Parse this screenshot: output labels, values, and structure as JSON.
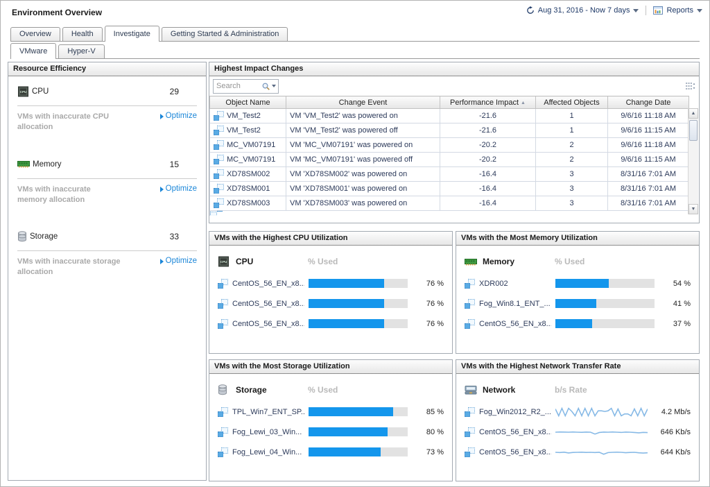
{
  "header": {
    "title": "Environment Overview",
    "time_range": "Aug 31, 2016 - Now 7 days",
    "reports_label": "Reports"
  },
  "tabs": {
    "main": [
      "Overview",
      "Health",
      "Investigate",
      "Getting Started & Administration"
    ],
    "selected_main": "Investigate",
    "sub": [
      "VMware",
      "Hyper-V"
    ],
    "selected_sub": "VMware"
  },
  "resource_efficiency": {
    "title": "Resource Efficiency",
    "metrics": [
      {
        "label": "CPU",
        "value": "29",
        "sub_label": "VMs with inaccurate CPU allocation",
        "action": "Optimize"
      },
      {
        "label": "Memory",
        "value": "15",
        "sub_label": "VMs with inaccurate memory allocation",
        "action": "Optimize"
      },
      {
        "label": "Storage",
        "value": "33",
        "sub_label": "VMs with inaccurate storage allocation",
        "action": "Optimize"
      }
    ]
  },
  "changes": {
    "title": "Highest Impact Changes",
    "search_placeholder": "Search",
    "columns": [
      "Object Name",
      "Change Event",
      "Performance Impact",
      "Affected Objects",
      "Change Date"
    ],
    "sorted_column": "Performance Impact",
    "sort_direction": "asc",
    "rows": [
      [
        "VM_Test2",
        "VM 'VM_Test2' was powered on",
        "-21.6",
        "1",
        "9/6/16 11:18 AM"
      ],
      [
        "VM_Test2",
        "VM 'VM_Test2' was powered off",
        "-21.6",
        "1",
        "9/6/16 11:15 AM"
      ],
      [
        "MC_VM07191",
        "VM 'MC_VM07191' was powered on",
        "-20.2",
        "2",
        "9/6/16 11:18 AM"
      ],
      [
        "MC_VM07191",
        "VM 'MC_VM07191' was powered off",
        "-20.2",
        "2",
        "9/6/16 11:15 AM"
      ],
      [
        "XD78SM002",
        "VM 'XD78SM002' was powered on",
        "-16.4",
        "3",
        "8/31/16 7:01 AM"
      ],
      [
        "XD78SM001",
        "VM 'XD78SM001' was powered on",
        "-16.4",
        "3",
        "8/31/16 7:01 AM"
      ],
      [
        "XD78SM003",
        "VM 'XD78SM003' was powered on",
        "-16.4",
        "3",
        "8/31/16 7:01 AM"
      ]
    ]
  },
  "utilization_panels": {
    "cpu": {
      "title": "VMs with the Highest CPU Utilization",
      "metric": "CPU",
      "unit": "% Used",
      "rows": [
        {
          "name": "CentOS_56_EN_x8...",
          "percent": 76,
          "label": "76 %"
        },
        {
          "name": "CentOS_56_EN_x8...",
          "percent": 76,
          "label": "76 %"
        },
        {
          "name": "CentOS_56_EN_x8...",
          "percent": 76,
          "label": "76 %"
        }
      ]
    },
    "memory": {
      "title": "VMs with the Most Memory Utilization",
      "metric": "Memory",
      "unit": "% Used",
      "rows": [
        {
          "name": "XDR002",
          "percent": 54,
          "label": "54 %"
        },
        {
          "name": "Fog_Win8.1_ENT_...",
          "percent": 41,
          "label": "41 %"
        },
        {
          "name": "CentOS_56_EN_x8...",
          "percent": 37,
          "label": "37 %"
        }
      ]
    },
    "storage": {
      "title": "VMs with the Most Storage Utilization",
      "metric": "Storage",
      "unit": "% Used",
      "rows": [
        {
          "name": "TPL_Win7_ENT_SP...",
          "percent": 85,
          "label": "85 %"
        },
        {
          "name": "Fog_Lewi_03_Win...",
          "percent": 80,
          "label": "80 %"
        },
        {
          "name": "Fog_Lewi_04_Win...",
          "percent": 73,
          "label": "73 %"
        }
      ]
    },
    "network": {
      "title": "VMs with the Highest Network Transfer Rate",
      "metric": "Network",
      "unit": "b/s Rate",
      "rows": [
        {
          "name": "Fog_Win2012_R2_...",
          "label": "4.2 Mb/s",
          "spark": [
            5,
            16,
            4,
            16,
            4,
            9,
            16,
            4,
            16,
            4,
            16,
            4,
            16,
            8,
            8,
            9,
            8,
            4,
            16,
            5,
            16,
            13,
            13,
            16,
            5,
            16,
            4,
            16,
            5
          ]
        },
        {
          "name": "CentOS_56_EN_x8...",
          "label": "646 Kb/s",
          "spark": [
            10,
            9.6,
            9.8,
            10,
            9.7,
            10,
            10.2,
            9.8,
            10,
            13,
            10.5,
            9.8,
            10,
            9.7,
            10,
            10.4,
            9.8,
            10,
            10.5,
            11,
            10.4,
            10.6
          ]
        },
        {
          "name": "CentOS_56_EN_x8...",
          "label": "644 Kb/s",
          "spark": [
            10,
            10.3,
            9.8,
            11,
            10.2,
            10,
            9.8,
            10.2,
            10,
            10.3,
            9.9,
            13,
            10.4,
            10,
            9.8,
            10,
            10.6,
            10.2,
            10,
            10.8,
            11.2,
            10.8
          ]
        }
      ]
    }
  },
  "colors": {
    "bar_fill": "#1496ec",
    "link": "#1b86d8",
    "sparkline": "#86b9e6",
    "panel_border": "#a3aab2"
  }
}
